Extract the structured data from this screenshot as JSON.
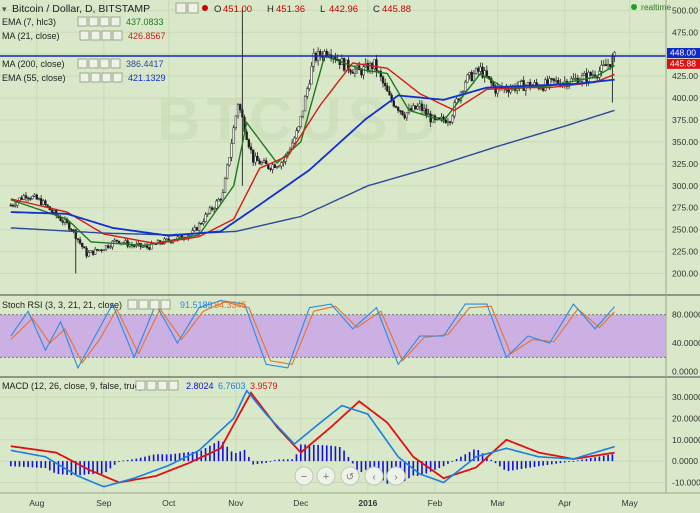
{
  "header": {
    "symbol": "Bitcoin / Dollar, D, BITSTAMP",
    "ohlc": [
      {
        "k": "O",
        "v": "451.00"
      },
      {
        "k": "H",
        "v": "451.36"
      },
      {
        "k": "L",
        "v": "442.96"
      },
      {
        "k": "C",
        "v": "445.88"
      }
    ],
    "realtime": "realtime"
  },
  "colors": {
    "background": "#d9e8c8",
    "ema7": "#1e7a1e",
    "ma21": "#d61a1a",
    "ma200": "#2a4a9a",
    "ema55": "#1030d0",
    "hline": "#1028c8",
    "rsi_band": "#c9a6e8",
    "k_line": "#2a8be0",
    "d_line": "#e5742a",
    "macd_line": "#1a7fe0",
    "signal_line": "#e01010",
    "hist": "#1010e0",
    "candle_up": "#f4f4f4",
    "candle_down": "#1a1a1a"
  },
  "legend": [
    {
      "label": "EMA (7, hlc3)",
      "value": "437.0833",
      "color": "#1e7a1e"
    },
    {
      "label": "MA (21, close)",
      "value": "426.8567",
      "color": "#d61a1a"
    },
    {
      "label": "MA (200, close)",
      "value": "386.4417",
      "color": "#2a4a9a"
    },
    {
      "label": "EMA (55, close)",
      "value": "421.1329",
      "color": "#1030d0"
    }
  ],
  "price_tags": {
    "line": "448.00",
    "last": "445.88"
  },
  "chart_data": [
    {
      "type": "candlestick",
      "title": "Bitcoin / Dollar, D, BITSTAMP",
      "ylim": [
        180,
        505
      ],
      "y_ticks": [
        200,
        225,
        250,
        275,
        300,
        325,
        350,
        375,
        400,
        425,
        450,
        475,
        500
      ],
      "x_ticks": [
        "Aug",
        "Sep",
        "Oct",
        "Nov",
        "Dec",
        "2016",
        "Feb",
        "Mar",
        "Apr",
        "May"
      ],
      "x_tick_dates": [
        "2015-08-01",
        "2015-09-01",
        "2015-10-01",
        "2015-11-01",
        "2015-12-01",
        "2016-01-01",
        "2016-02-01",
        "2016-03-01",
        "2016-04-01",
        "2016-05-01"
      ],
      "horizontal_line": 448,
      "price_key_points": [
        [
          "2015-07-20",
          278
        ],
        [
          "2015-07-27",
          290
        ],
        [
          "2015-08-03",
          282
        ],
        [
          "2015-08-10",
          266
        ],
        [
          "2015-08-17",
          252
        ],
        [
          "2015-08-24",
          222
        ],
        [
          "2015-08-31",
          228
        ],
        [
          "2015-09-07",
          238
        ],
        [
          "2015-09-14",
          232
        ],
        [
          "2015-09-21",
          230
        ],
        [
          "2015-09-28",
          236
        ],
        [
          "2015-10-05",
          240
        ],
        [
          "2015-10-12",
          246
        ],
        [
          "2015-10-19",
          268
        ],
        [
          "2015-10-26",
          290
        ],
        [
          "2015-11-02",
          395
        ],
        [
          "2015-11-09",
          330
        ],
        [
          "2015-11-16",
          322
        ],
        [
          "2015-11-23",
          328
        ],
        [
          "2015-11-30",
          365
        ],
        [
          "2015-12-07",
          445
        ],
        [
          "2015-12-14",
          455
        ],
        [
          "2015-12-21",
          438
        ],
        [
          "2015-12-28",
          430
        ],
        [
          "2016-01-04",
          438
        ],
        [
          "2016-01-11",
          400
        ],
        [
          "2016-01-18",
          382
        ],
        [
          "2016-01-25",
          390
        ],
        [
          "2016-02-01",
          372
        ],
        [
          "2016-02-08",
          378
        ],
        [
          "2016-02-15",
          420
        ],
        [
          "2016-02-22",
          432
        ],
        [
          "2016-02-29",
          410
        ],
        [
          "2016-03-07",
          412
        ],
        [
          "2016-03-14",
          415
        ],
        [
          "2016-03-21",
          414
        ],
        [
          "2016-03-28",
          418
        ],
        [
          "2016-04-04",
          420
        ],
        [
          "2016-04-11",
          424
        ],
        [
          "2016-04-18",
          432
        ],
        [
          "2016-04-24",
          446
        ]
      ],
      "series": [
        {
          "name": "EMA (7, hlc3)",
          "last": 437.0833,
          "points": [
            [
              "2015-07-20",
              284
            ],
            [
              "2015-08-15",
              262
            ],
            [
              "2015-08-26",
              236
            ],
            [
              "2015-09-20",
              232
            ],
            [
              "2015-10-15",
              244
            ],
            [
              "2015-10-31",
              300
            ],
            [
              "2015-11-06",
              372
            ],
            [
              "2015-11-20",
              326
            ],
            [
              "2015-12-01",
              350
            ],
            [
              "2015-12-12",
              448
            ],
            [
              "2015-12-30",
              432
            ],
            [
              "2016-01-10",
              428
            ],
            [
              "2016-01-20",
              386
            ],
            [
              "2016-02-05",
              374
            ],
            [
              "2016-02-22",
              428
            ],
            [
              "2016-03-05",
              410
            ],
            [
              "2016-03-25",
              414
            ],
            [
              "2016-04-15",
              424
            ],
            [
              "2016-04-24",
              437
            ]
          ]
        },
        {
          "name": "MA (21, close)",
          "last": 426.8567,
          "points": [
            [
              "2015-07-20",
              285
            ],
            [
              "2015-08-15",
              270
            ],
            [
              "2015-09-01",
              245
            ],
            [
              "2015-09-25",
              234
            ],
            [
              "2015-10-15",
              242
            ],
            [
              "2015-10-31",
              262
            ],
            [
              "2015-11-12",
              320
            ],
            [
              "2015-11-25",
              334
            ],
            [
              "2015-12-10",
              392
            ],
            [
              "2015-12-25",
              440
            ],
            [
              "2016-01-10",
              434
            ],
            [
              "2016-01-25",
              405
            ],
            [
              "2016-02-10",
              386
            ],
            [
              "2016-02-25",
              410
            ],
            [
              "2016-03-10",
              412
            ],
            [
              "2016-03-25",
              412
            ],
            [
              "2016-04-15",
              418
            ],
            [
              "2016-04-24",
              427
            ]
          ]
        },
        {
          "name": "MA (200, close)",
          "last": 386.4417,
          "points": [
            [
              "2015-07-20",
              252
            ],
            [
              "2015-09-01",
              246
            ],
            [
              "2015-10-01",
              244
            ],
            [
              "2015-11-01",
              248
            ],
            [
              "2015-12-01",
              265
            ],
            [
              "2016-01-01",
              300
            ],
            [
              "2016-02-01",
              322
            ],
            [
              "2016-03-01",
              345
            ],
            [
              "2016-04-01",
              368
            ],
            [
              "2016-04-24",
              386
            ]
          ]
        },
        {
          "name": "EMA (55, close)",
          "last": 421.1329,
          "points": [
            [
              "2015-07-20",
              270
            ],
            [
              "2015-08-15",
              268
            ],
            [
              "2015-09-05",
              252
            ],
            [
              "2015-10-01",
              243
            ],
            [
              "2015-10-25",
              248
            ],
            [
              "2015-11-10",
              275
            ],
            [
              "2015-12-05",
              318
            ],
            [
              "2015-12-31",
              376
            ],
            [
              "2016-01-15",
              403
            ],
            [
              "2016-02-05",
              398
            ],
            [
              "2016-02-25",
              412
            ],
            [
              "2016-03-15",
              414
            ],
            [
              "2016-04-05",
              416
            ],
            [
              "2016-04-24",
              421
            ]
          ]
        }
      ]
    },
    {
      "type": "line",
      "title": "Stoch RSI (3, 3, 21, 21, close)",
      "values": [
        "91.5189",
        "84.3345"
      ],
      "ylim": [
        -5,
        105
      ],
      "band": [
        20,
        80
      ],
      "y_ticks": [
        0,
        40,
        80
      ],
      "y_tick_labels": [
        "0.0000",
        "40.0000",
        "80.0000"
      ],
      "series": [
        {
          "name": "K",
          "points": [
            [
              "2015-07-20",
              50
            ],
            [
              "2015-07-28",
              85
            ],
            [
              "2015-08-05",
              30
            ],
            [
              "2015-08-12",
              70
            ],
            [
              "2015-08-20",
              5
            ],
            [
              "2015-08-28",
              50
            ],
            [
              "2015-09-05",
              95
            ],
            [
              "2015-09-15",
              20
            ],
            [
              "2015-09-25",
              95
            ],
            [
              "2015-10-05",
              40
            ],
            [
              "2015-10-15",
              90
            ],
            [
              "2015-10-25",
              100
            ],
            [
              "2015-11-05",
              95
            ],
            [
              "2015-11-15",
              10
            ],
            [
              "2015-11-25",
              5
            ],
            [
              "2015-12-05",
              90
            ],
            [
              "2015-12-15",
              95
            ],
            [
              "2015-12-25",
              60
            ],
            [
              "2016-01-05",
              90
            ],
            [
              "2016-01-15",
              10
            ],
            [
              "2016-01-25",
              50
            ],
            [
              "2016-02-05",
              50
            ],
            [
              "2016-02-15",
              95
            ],
            [
              "2016-02-25",
              95
            ],
            [
              "2016-03-05",
              20
            ],
            [
              "2016-03-15",
              50
            ],
            [
              "2016-03-25",
              40
            ],
            [
              "2016-04-05",
              95
            ],
            [
              "2016-04-15",
              60
            ],
            [
              "2016-04-24",
              91.5
            ]
          ]
        },
        {
          "name": "D",
          "points": [
            [
              "2015-07-20",
              45
            ],
            [
              "2015-07-30",
              75
            ],
            [
              "2015-08-07",
              40
            ],
            [
              "2015-08-14",
              60
            ],
            [
              "2015-08-22",
              12
            ],
            [
              "2015-08-30",
              45
            ],
            [
              "2015-09-07",
              88
            ],
            [
              "2015-09-17",
              25
            ],
            [
              "2015-09-27",
              88
            ],
            [
              "2015-10-07",
              45
            ],
            [
              "2015-10-17",
              85
            ],
            [
              "2015-10-27",
              98
            ],
            [
              "2015-11-07",
              90
            ],
            [
              "2015-11-17",
              15
            ],
            [
              "2015-11-27",
              10
            ],
            [
              "2015-12-07",
              85
            ],
            [
              "2015-12-17",
              92
            ],
            [
              "2015-12-27",
              62
            ],
            [
              "2016-01-07",
              85
            ],
            [
              "2016-01-17",
              15
            ],
            [
              "2016-01-27",
              48
            ],
            [
              "2016-02-07",
              52
            ],
            [
              "2016-02-17",
              90
            ],
            [
              "2016-02-27",
              92
            ],
            [
              "2016-03-07",
              25
            ],
            [
              "2016-03-17",
              45
            ],
            [
              "2016-03-27",
              42
            ],
            [
              "2016-04-07",
              88
            ],
            [
              "2016-04-17",
              62
            ],
            [
              "2016-04-24",
              84.3
            ]
          ]
        }
      ]
    },
    {
      "type": "line",
      "title": "MACD (12, 26, close, 9, false, true)",
      "values": [
        "2.8024",
        "6.7603",
        "3.9579"
      ],
      "ylim": [
        -14,
        38
      ],
      "y_ticks": [
        -10,
        0,
        10,
        20,
        30
      ],
      "y_tick_labels": [
        "-10.0000",
        "0.0000",
        "10.0000",
        "20.0000",
        "30.0000"
      ],
      "series": [
        {
          "name": "MACD",
          "points": [
            [
              "2015-07-20",
              5
            ],
            [
              "2015-08-05",
              2
            ],
            [
              "2015-08-20",
              -7
            ],
            [
              "2015-09-01",
              -12
            ],
            [
              "2015-09-15",
              -8
            ],
            [
              "2015-10-01",
              -2
            ],
            [
              "2015-10-15",
              5
            ],
            [
              "2015-10-31",
              20
            ],
            [
              "2015-11-06",
              33
            ],
            [
              "2015-11-15",
              22
            ],
            [
              "2015-11-28",
              8
            ],
            [
              "2015-12-10",
              18
            ],
            [
              "2015-12-20",
              26
            ],
            [
              "2016-01-01",
              22
            ],
            [
              "2016-01-15",
              2
            ],
            [
              "2016-01-25",
              -6
            ],
            [
              "2016-02-05",
              -10
            ],
            [
              "2016-02-20",
              2
            ],
            [
              "2016-03-05",
              6
            ],
            [
              "2016-03-20",
              2
            ],
            [
              "2016-04-05",
              1
            ],
            [
              "2016-04-24",
              6.8
            ]
          ]
        },
        {
          "name": "Signal",
          "points": [
            [
              "2015-07-20",
              7
            ],
            [
              "2015-08-10",
              4
            ],
            [
              "2015-08-25",
              -4
            ],
            [
              "2015-09-08",
              -10
            ],
            [
              "2015-09-25",
              -7
            ],
            [
              "2015-10-10",
              -1
            ],
            [
              "2015-10-25",
              6
            ],
            [
              "2015-11-08",
              32
            ],
            [
              "2015-11-20",
              16
            ],
            [
              "2015-12-01",
              4
            ],
            [
              "2015-12-15",
              16
            ],
            [
              "2015-12-28",
              28
            ],
            [
              "2016-01-10",
              18
            ],
            [
              "2016-01-22",
              2
            ],
            [
              "2016-02-05",
              -8
            ],
            [
              "2016-02-20",
              -3
            ],
            [
              "2016-03-05",
              10
            ],
            [
              "2016-03-20",
              4
            ],
            [
              "2016-04-05",
              1
            ],
            [
              "2016-04-24",
              3.96
            ]
          ]
        }
      ]
    }
  ]
}
